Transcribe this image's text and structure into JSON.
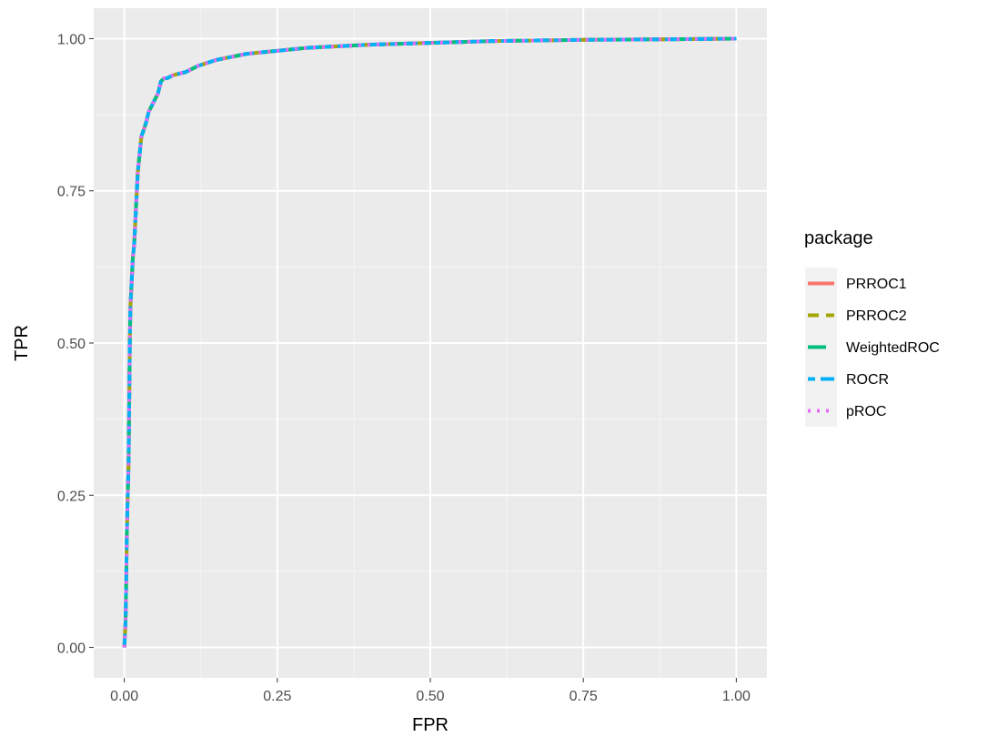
{
  "chart_data": {
    "type": "line",
    "title": "",
    "xlabel": "FPR",
    "ylabel": "TPR",
    "xlim": [
      -0.05,
      1.05
    ],
    "ylim": [
      -0.05,
      1.05
    ],
    "x_ticks": [
      0,
      0.25,
      0.5,
      0.75,
      1
    ],
    "x_tick_labels": [
      "0.00",
      "0.25",
      "0.50",
      "0.75",
      "1.00"
    ],
    "y_ticks": [
      0,
      0.25,
      0.5,
      0.75,
      1
    ],
    "y_tick_labels": [
      "0.00",
      "0.25",
      "0.50",
      "0.75",
      "1.00"
    ],
    "grid": true,
    "legend": {
      "title": "package",
      "position": "right",
      "entries": [
        {
          "label": "PRROC1",
          "color": "#F8766D",
          "dash": "solid"
        },
        {
          "label": "PRROC2",
          "color": "#A3A500",
          "dash": "dashed"
        },
        {
          "label": "WeightedROC",
          "color": "#00BF7D",
          "dash": "longdash"
        },
        {
          "label": "ROCR",
          "color": "#00B0F6",
          "dash": "twodash"
        },
        {
          "label": "pROC",
          "color": "#E76BF3",
          "dash": "dotted"
        }
      ]
    },
    "curve": {
      "x": [
        0,
        0.002,
        0.003,
        0.004,
        0.005,
        0.007,
        0.008,
        0.009,
        0.01,
        0.012,
        0.014,
        0.016,
        0.018,
        0.02,
        0.022,
        0.024,
        0.026,
        0.028,
        0.03,
        0.035,
        0.04,
        0.045,
        0.05,
        0.055,
        0.06,
        0.065,
        0.07,
        0.08,
        0.1,
        0.11,
        0.12,
        0.135,
        0.15,
        0.175,
        0.2,
        0.25,
        0.3,
        0.4,
        0.5,
        0.6,
        0.75,
        0.9,
        1
      ],
      "y": [
        0,
        0.04,
        0.1,
        0.18,
        0.23,
        0.3,
        0.4,
        0.5,
        0.56,
        0.6,
        0.64,
        0.66,
        0.7,
        0.74,
        0.78,
        0.8,
        0.82,
        0.84,
        0.845,
        0.86,
        0.88,
        0.89,
        0.9,
        0.91,
        0.93,
        0.935,
        0.935,
        0.94,
        0.945,
        0.95,
        0.955,
        0.96,
        0.965,
        0.97,
        0.975,
        0.98,
        0.985,
        0.99,
        0.993,
        0.996,
        0.998,
        0.999,
        1
      ]
    },
    "series": [
      {
        "name": "PRROC1"
      },
      {
        "name": "PRROC2"
      },
      {
        "name": "WeightedROC"
      },
      {
        "name": "ROCR"
      },
      {
        "name": "pROC"
      }
    ]
  }
}
